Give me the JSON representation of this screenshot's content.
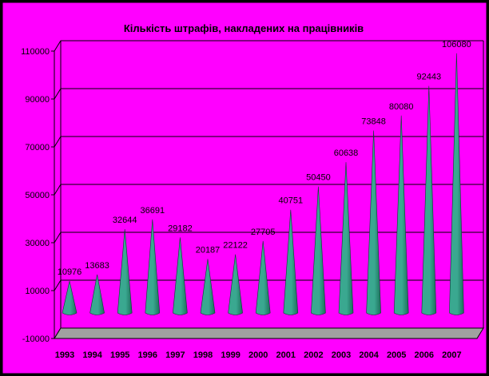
{
  "colors": {
    "background": "#ff00ff",
    "frame": "#000000",
    "cone_light": "#3aa890",
    "cone_dark": "#1d6f5c",
    "floor": "#a0a0a0",
    "gridline": "#000000"
  },
  "chart_data": {
    "type": "bar",
    "shape": "cone-3d",
    "title": "Кількість штрафів, накладених на працівників",
    "xlabel": "",
    "ylabel": "",
    "categories": [
      "1993",
      "1994",
      "1995",
      "1996",
      "1997",
      "1998",
      "1999",
      "2000",
      "2001",
      "2002",
      "2003",
      "2004",
      "2005",
      "2006",
      "2007"
    ],
    "values": [
      10976,
      13683,
      32644,
      36691,
      29182,
      20187,
      22122,
      27705,
      40751,
      50450,
      60638,
      73848,
      80080,
      92443,
      106080
    ],
    "value_labels": [
      "10976",
      "13683",
      "32644",
      "36691",
      "29182",
      "20187",
      "22122",
      "27705",
      "40751",
      "50450",
      "60638",
      "73848",
      "80080",
      "92443",
      "106080"
    ],
    "ylim": [
      -10000,
      110000
    ],
    "yticks": [
      -10000,
      10000,
      30000,
      50000,
      70000,
      90000,
      110000
    ],
    "ytick_labels": [
      "-10000",
      "10000",
      "30000",
      "50000",
      "70000",
      "90000",
      "110000"
    ],
    "grid": true,
    "legend": "none"
  }
}
